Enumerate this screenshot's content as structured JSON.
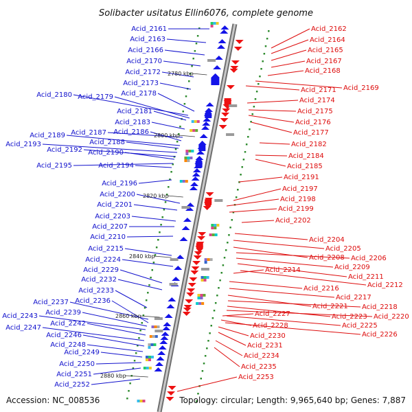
{
  "title": "Solibacter usitatus Ellin6076, complete genome",
  "accession": "Accession: NC_008536",
  "topology": "Topology: circular; Length: 9,965,640 bp; Genes: 7,887",
  "colors": {
    "left_labels": "#1010cc",
    "right_labels": "#dd0a0a",
    "backbone": "#9a9a9a",
    "tick": "#2e8b2e"
  },
  "kbp_labels": [
    "2780 kbp",
    "2800 kbp",
    "2820 kbp",
    "2840 kbp",
    "2860 kbp",
    "2880 kbp"
  ],
  "left_genes": [
    "Acid_2161",
    "Acid_2163",
    "Acid_2166",
    "Acid_2170",
    "Acid_2172",
    "Acid_2173",
    "Acid_2178",
    "Acid_2180",
    "Acid_2179",
    "Acid_2181",
    "Acid_2183",
    "Acid_2187",
    "Acid_2186",
    "Acid_2189",
    "Acid_2188",
    "Acid_2193",
    "Acid_2192",
    "Acid_2190",
    "Acid_2195",
    "Acid_2194",
    "Acid_2196",
    "Acid_2200",
    "Acid_2201",
    "Acid_2203",
    "Acid_2207",
    "Acid_2210",
    "Acid_2215",
    "Acid_2224",
    "Acid_2229",
    "Acid_2232",
    "Acid_2233",
    "Acid_2237",
    "Acid_2236",
    "Acid_2239",
    "Acid_2243",
    "Acid_2242",
    "Acid_2247",
    "Acid_2246",
    "Acid_2248",
    "Acid_2249",
    "Acid_2250",
    "Acid_2251",
    "Acid_2252"
  ],
  "right_genes": [
    "Acid_2162",
    "Acid_2164",
    "Acid_2165",
    "Acid_2167",
    "Acid_2168",
    "Acid_2171",
    "Acid_2169",
    "Acid_2174",
    "Acid_2175",
    "Acid_2176",
    "Acid_2177",
    "Acid_2182",
    "Acid_2184",
    "Acid_2185",
    "Acid_2191",
    "Acid_2197",
    "Acid_2198",
    "Acid_2199",
    "Acid_2202",
    "Acid_2204",
    "Acid_2205",
    "Acid_2208",
    "Acid_2206",
    "Acid_2209",
    "Acid_2211",
    "Acid_2214",
    "Acid_2212",
    "Acid_2216",
    "Acid_2217",
    "Acid_2221",
    "Acid_2218",
    "Acid_2223",
    "Acid_2220",
    "Acid_2227",
    "Acid_2225",
    "Acid_2228",
    "Acid_2226",
    "Acid_2230",
    "Acid_2231",
    "Acid_2234",
    "Acid_2235",
    "Acid_2253"
  ]
}
